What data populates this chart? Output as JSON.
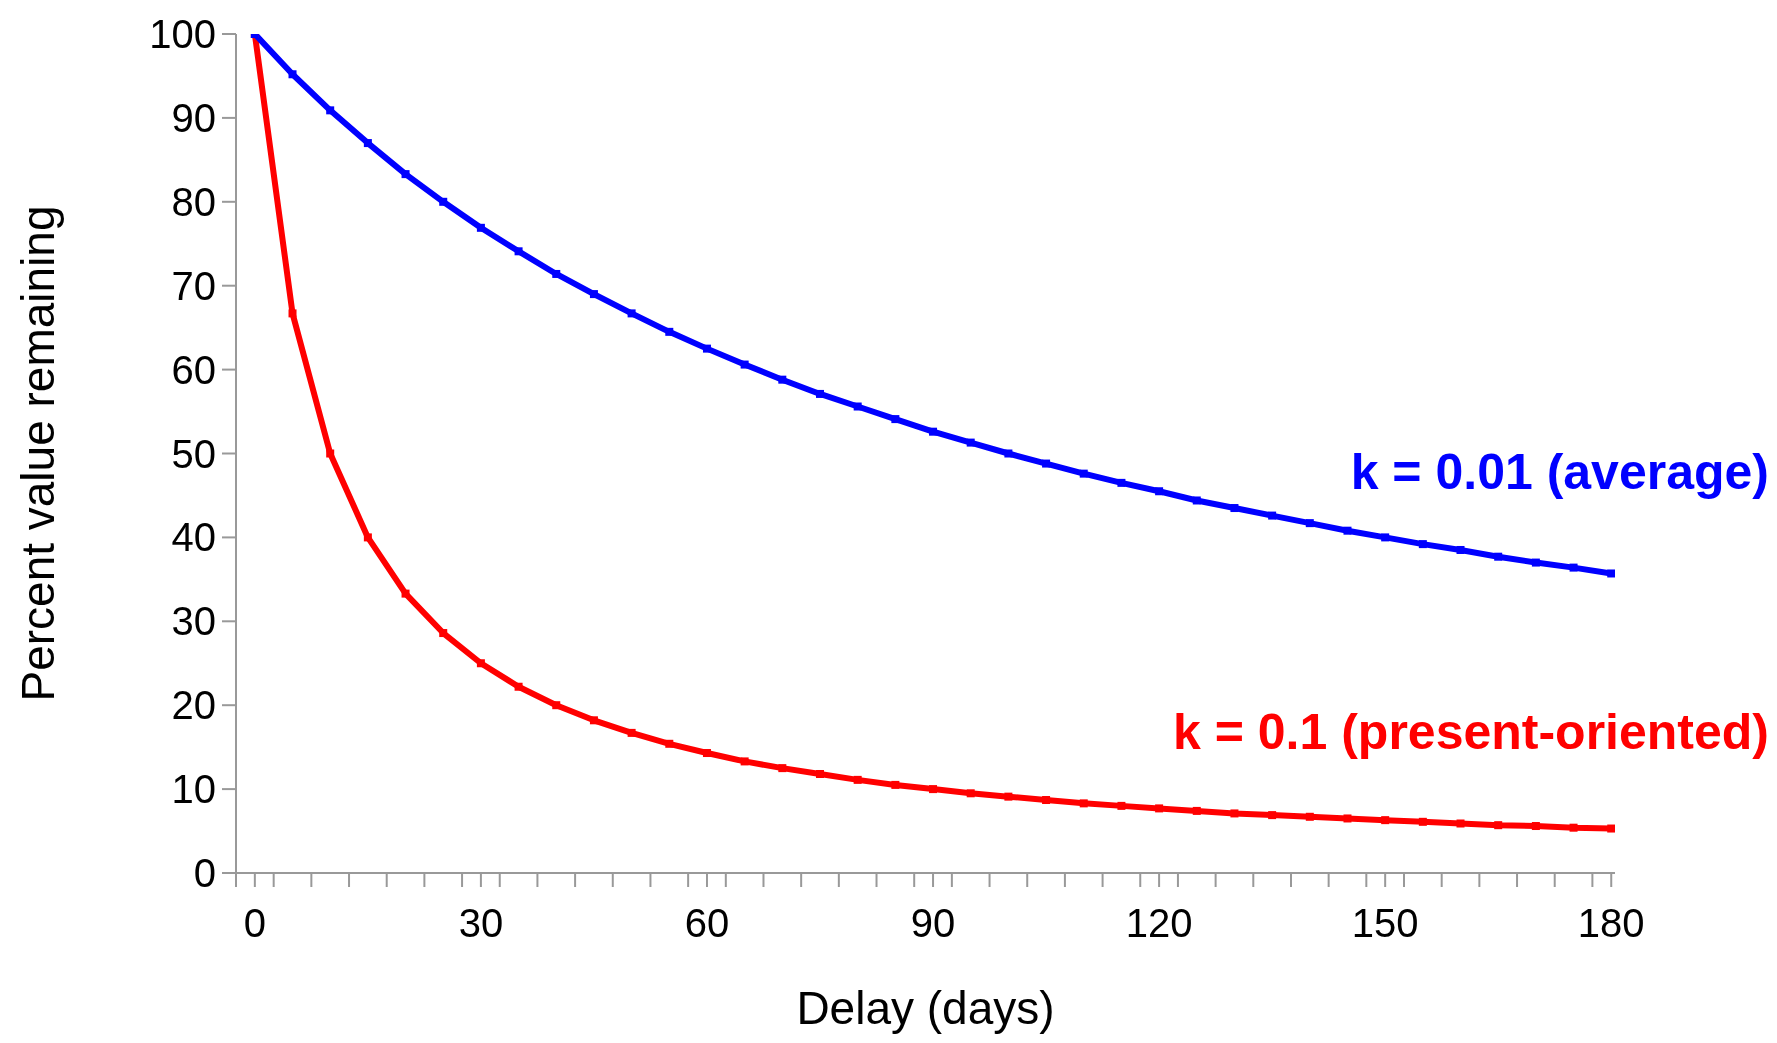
{
  "chart_data": {
    "type": "line",
    "xlabel": "Delay (days)",
    "ylabel": "Percent value remaining",
    "x": [
      0,
      5,
      10,
      15,
      20,
      25,
      30,
      35,
      40,
      45,
      50,
      55,
      60,
      65,
      70,
      75,
      80,
      85,
      90,
      95,
      100,
      105,
      110,
      115,
      120,
      125,
      130,
      135,
      140,
      145,
      150,
      155,
      160,
      165,
      170,
      175,
      180
    ],
    "series": [
      {
        "name": "k = 0.01 (average)",
        "color": "#0000ff",
        "values": [
          100,
          95.2,
          90.9,
          87.0,
          83.3,
          80.0,
          76.9,
          74.1,
          71.4,
          69.0,
          66.7,
          64.5,
          62.5,
          60.6,
          58.8,
          57.1,
          55.6,
          54.1,
          52.6,
          51.3,
          50.0,
          48.8,
          47.6,
          46.5,
          45.5,
          44.4,
          43.5,
          42.6,
          41.7,
          40.8,
          40.0,
          39.2,
          38.5,
          37.7,
          37.0,
          36.4,
          35.7
        ]
      },
      {
        "name": "k = 0.1 (present-oriented)",
        "color": "#ff0000",
        "values": [
          100,
          66.7,
          50,
          40,
          33.3,
          28.6,
          25,
          22.2,
          20,
          18.2,
          16.7,
          15.4,
          14.3,
          13.3,
          12.5,
          11.8,
          11.1,
          10.5,
          10,
          9.5,
          9.1,
          8.7,
          8.3,
          8.0,
          7.7,
          7.4,
          7.1,
          6.9,
          6.7,
          6.5,
          6.3,
          6.1,
          5.9,
          5.7,
          5.6,
          5.4,
          5.3
        ]
      }
    ],
    "xlim": [
      -2.5,
      180.5
    ],
    "xticks": [
      {
        "value": -2.5,
        "label": null
      },
      0,
      {
        "value": 2.5,
        "label": null
      },
      {
        "value": 7.5,
        "label": null
      },
      {
        "value": 12.5,
        "label": null
      },
      {
        "value": 17.5,
        "label": null
      },
      {
        "value": 22.5,
        "label": null
      },
      {
        "value": 27.5,
        "label": null
      },
      30,
      {
        "value": 32.5,
        "label": null
      },
      {
        "value": 37.5,
        "label": null
      },
      {
        "value": 42.5,
        "label": null
      },
      {
        "value": 47.5,
        "label": null
      },
      {
        "value": 52.5,
        "label": null
      },
      {
        "value": 57.5,
        "label": null
      },
      60,
      {
        "value": 62.5,
        "label": null
      },
      {
        "value": 67.5,
        "label": null
      },
      {
        "value": 72.5,
        "label": null
      },
      {
        "value": 77.5,
        "label": null
      },
      {
        "value": 82.5,
        "label": null
      },
      {
        "value": 87.5,
        "label": null
      },
      90,
      {
        "value": 92.5,
        "label": null
      },
      {
        "value": 97.5,
        "label": null
      },
      {
        "value": 102.5,
        "label": null
      },
      {
        "value": 107.5,
        "label": null
      },
      {
        "value": 112.5,
        "label": null
      },
      {
        "value": 117.5,
        "label": null
      },
      120,
      {
        "value": 122.5,
        "label": null
      },
      {
        "value": 127.5,
        "label": null
      },
      {
        "value": 132.5,
        "label": null
      },
      {
        "value": 137.5,
        "label": null
      },
      {
        "value": 142.5,
        "label": null
      },
      {
        "value": 147.5,
        "label": null
      },
      150,
      {
        "value": 152.5,
        "label": null
      },
      {
        "value": 157.5,
        "label": null
      },
      {
        "value": 162.5,
        "label": null
      },
      {
        "value": 167.5,
        "label": null
      },
      {
        "value": 172.5,
        "label": null
      },
      {
        "value": 177.5,
        "label": null
      },
      180
    ],
    "ylim": [
      0,
      100
    ],
    "yticks": [
      0,
      10,
      20,
      30,
      40,
      50,
      60,
      70,
      80,
      90,
      100
    ],
    "grid": false,
    "legend": false,
    "marker": "square",
    "line_style": "solid"
  }
}
